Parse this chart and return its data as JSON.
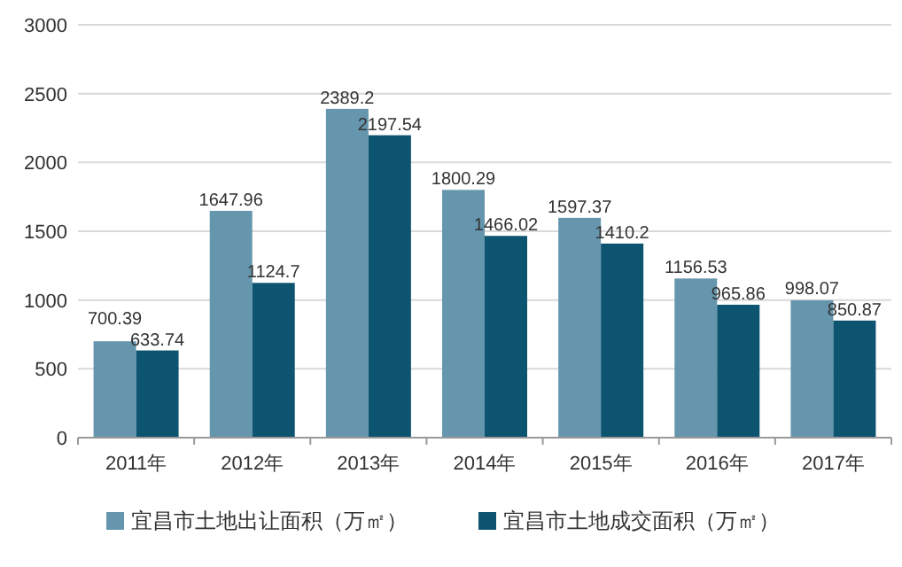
{
  "chart_data": {
    "type": "bar",
    "categories": [
      "2011年",
      "2012年",
      "2013年",
      "2014年",
      "2015年",
      "2016年",
      "2017年"
    ],
    "series": [
      {
        "name": "宜昌市土地出让面积（万㎡）",
        "color": "#6596ad",
        "values": [
          700.39,
          1647.96,
          2389.2,
          1800.29,
          1597.37,
          1156.53,
          998.07
        ]
      },
      {
        "name": "宜昌市土地成交面积（万㎡）",
        "color": "#0d5470",
        "values": [
          633.74,
          1124.7,
          2197.54,
          1466.02,
          1410.2,
          965.86,
          850.87
        ]
      }
    ],
    "ylim": [
      0,
      3000
    ],
    "yticks": [
      0,
      500,
      1000,
      1500,
      2000,
      2500,
      3000
    ],
    "grid": "y",
    "legend": "bottom",
    "data_labels": true
  }
}
